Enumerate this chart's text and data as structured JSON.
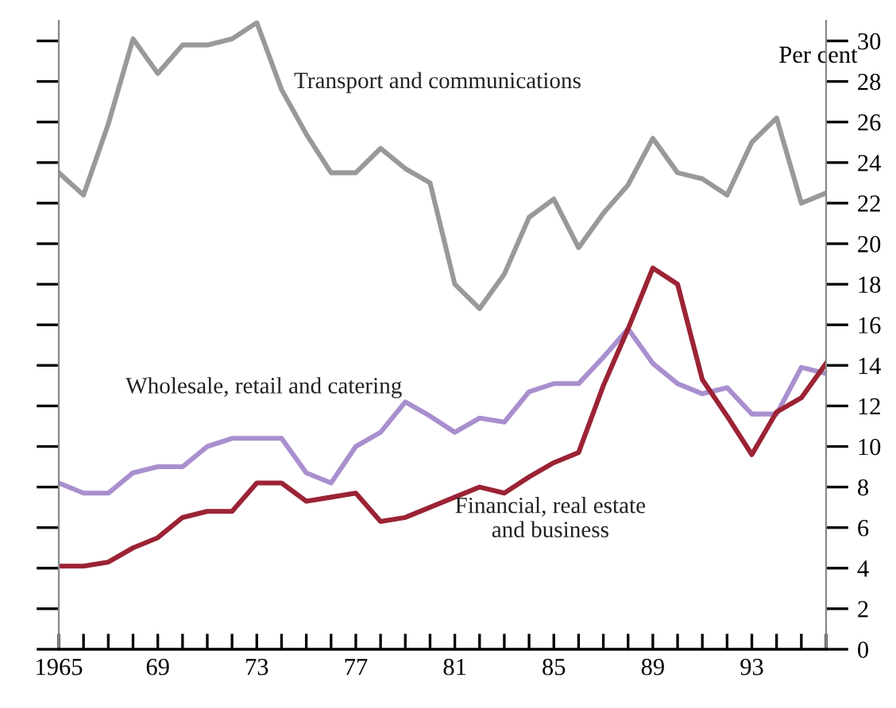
{
  "chart_data": {
    "type": "line",
    "ylabel": "Per cent",
    "x": [
      1965,
      1966,
      1967,
      1968,
      1969,
      1970,
      1971,
      1972,
      1973,
      1974,
      1975,
      1976,
      1977,
      1978,
      1979,
      1980,
      1981,
      1982,
      1983,
      1984,
      1985,
      1986,
      1987,
      1988,
      1989,
      1990,
      1991,
      1992,
      1993,
      1994,
      1995,
      1996
    ],
    "series": [
      {
        "name": "Transport and communications",
        "color": "#999999",
        "values": [
          23.5,
          22.4,
          25.9,
          30.1,
          28.4,
          29.8,
          29.8,
          30.1,
          30.9,
          27.6,
          25.4,
          23.5,
          23.5,
          24.7,
          23.7,
          23.0,
          18.0,
          16.8,
          18.5,
          21.3,
          22.2,
          19.8,
          21.5,
          22.9,
          25.2,
          23.5,
          23.2,
          22.4,
          25.0,
          26.2,
          22.0,
          22.5
        ]
      },
      {
        "name": "Wholesale, retail and catering",
        "color": "#a98fce",
        "values": [
          8.2,
          7.7,
          7.7,
          8.7,
          9.0,
          9.0,
          10.0,
          10.4,
          10.4,
          10.4,
          8.7,
          8.2,
          10.0,
          10.7,
          12.2,
          11.5,
          10.7,
          11.4,
          11.2,
          12.7,
          13.1,
          13.1,
          14.4,
          15.8,
          14.1,
          13.1,
          12.6,
          12.9,
          11.6,
          11.6,
          13.9,
          13.6
        ]
      },
      {
        "name": "Financial, real estate\nand business",
        "color": "#9b2335",
        "values": [
          4.1,
          4.1,
          4.3,
          5.0,
          5.5,
          6.5,
          6.8,
          6.8,
          8.2,
          8.2,
          7.3,
          7.5,
          7.7,
          6.3,
          6.5,
          7.0,
          7.5,
          8.0,
          7.7,
          8.5,
          9.2,
          9.7,
          13.0,
          15.8,
          18.8,
          18.0,
          13.3,
          11.5,
          9.6,
          11.7,
          12.4,
          14.1
        ]
      }
    ],
    "xlim": [
      1965,
      1996
    ],
    "xticks": [
      {
        "value": 1965,
        "label": "1965"
      },
      {
        "value": 1966,
        "label": null
      },
      {
        "value": 1967,
        "label": null
      },
      {
        "value": 1968,
        "label": null
      },
      {
        "value": 1969,
        "label": "69"
      },
      {
        "value": 1970,
        "label": null
      },
      {
        "value": 1971,
        "label": null
      },
      {
        "value": 1972,
        "label": null
      },
      {
        "value": 1973,
        "label": "73"
      },
      {
        "value": 1974,
        "label": null
      },
      {
        "value": 1975,
        "label": null
      },
      {
        "value": 1976,
        "label": null
      },
      {
        "value": 1977,
        "label": "77"
      },
      {
        "value": 1978,
        "label": null
      },
      {
        "value": 1979,
        "label": null
      },
      {
        "value": 1980,
        "label": null
      },
      {
        "value": 1981,
        "label": "81"
      },
      {
        "value": 1982,
        "label": null
      },
      {
        "value": 1983,
        "label": null
      },
      {
        "value": 1984,
        "label": null
      },
      {
        "value": 1985,
        "label": "85"
      },
      {
        "value": 1986,
        "label": null
      },
      {
        "value": 1987,
        "label": null
      },
      {
        "value": 1988,
        "label": null
      },
      {
        "value": 1989,
        "label": "89"
      },
      {
        "value": 1990,
        "label": null
      },
      {
        "value": 1991,
        "label": null
      },
      {
        "value": 1992,
        "label": null
      },
      {
        "value": 1993,
        "label": "93"
      },
      {
        "value": 1994,
        "label": null
      },
      {
        "value": 1995,
        "label": null
      },
      {
        "value": 1996,
        "label": null
      }
    ],
    "ylim": [
      0,
      31
    ],
    "yticks": [
      0,
      2,
      4,
      6,
      8,
      10,
      12,
      14,
      16,
      18,
      20,
      22,
      24,
      26,
      28,
      30
    ],
    "grid": false,
    "legend": false,
    "marker": "none",
    "line_style": "solid"
  }
}
